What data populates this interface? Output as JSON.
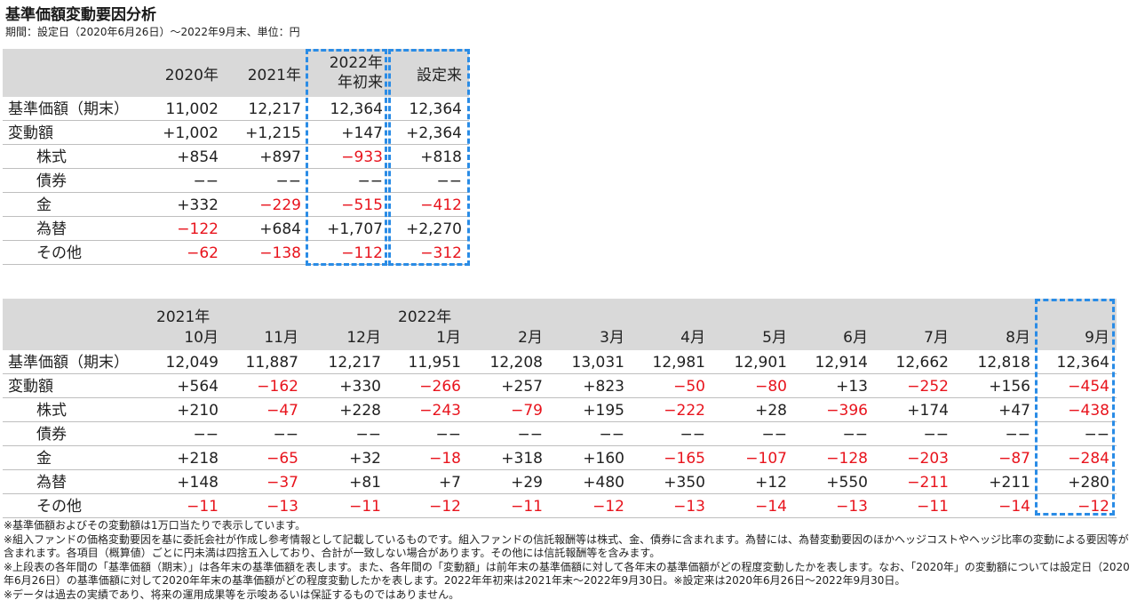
{
  "title": "基準価額変動要因分析",
  "subtitle": "期間：設定日（2020年6月26日）～2022年9月末、単位：円",
  "colors": {
    "negative": "#e8141d",
    "highlight": "#2a8ce6",
    "header_bg": "#d9d9d9"
  },
  "table1": {
    "headers": [
      "2020年",
      "2021年",
      "2022年",
      "年初来",
      "設定来"
    ],
    "rows": [
      {
        "label": "基準価額（期末）",
        "values": [
          "11,002",
          "12,217",
          "12,364",
          "12,364"
        ]
      },
      {
        "label": "変動額",
        "values": [
          "+1,002",
          "+1,215",
          "+147",
          "+2,364"
        ]
      },
      {
        "label": "株式",
        "values": [
          "+854",
          "+897",
          "−933",
          "+818"
        ]
      },
      {
        "label": "債券",
        "values": [
          "−−",
          "−−",
          "−−",
          "−−"
        ]
      },
      {
        "label": "金",
        "values": [
          "+332",
          "−229",
          "−515",
          "−412"
        ]
      },
      {
        "label": "為替",
        "values": [
          "−122",
          "+684",
          "+1,707",
          "+2,270"
        ]
      },
      {
        "label": "その他",
        "values": [
          "−62",
          "−138",
          "−112",
          "−312"
        ]
      }
    ]
  },
  "table2": {
    "year_labels": [
      "2021年",
      "2022年"
    ],
    "months": [
      "10月",
      "11月",
      "12月",
      "1月",
      "2月",
      "3月",
      "4月",
      "5月",
      "6月",
      "7月",
      "8月",
      "9月"
    ],
    "rows": [
      {
        "label": "基準価額（期末）",
        "values": [
          "12,049",
          "11,887",
          "12,217",
          "11,951",
          "12,208",
          "13,031",
          "12,981",
          "12,901",
          "12,914",
          "12,662",
          "12,818",
          "12,364"
        ]
      },
      {
        "label": "変動額",
        "values": [
          "+564",
          "−162",
          "+330",
          "−266",
          "+257",
          "+823",
          "−50",
          "−80",
          "+13",
          "−252",
          "+156",
          "−454"
        ]
      },
      {
        "label": "株式",
        "values": [
          "+210",
          "−47",
          "+228",
          "−243",
          "−79",
          "+195",
          "−222",
          "+28",
          "−396",
          "+174",
          "+47",
          "−438"
        ]
      },
      {
        "label": "債券",
        "values": [
          "−−",
          "−−",
          "−−",
          "−−",
          "−−",
          "−−",
          "−−",
          "−−",
          "−−",
          "−−",
          "−−",
          "−−"
        ]
      },
      {
        "label": "金",
        "values": [
          "+218",
          "−65",
          "+32",
          "−18",
          "+318",
          "+160",
          "−165",
          "−107",
          "−128",
          "−203",
          "−87",
          "−284"
        ]
      },
      {
        "label": "為替",
        "values": [
          "+148",
          "−37",
          "+81",
          "+7",
          "+29",
          "+480",
          "+350",
          "+12",
          "+550",
          "−211",
          "+211",
          "+280"
        ]
      },
      {
        "label": "その他",
        "values": [
          "−11",
          "−13",
          "−11",
          "−12",
          "−11",
          "−12",
          "−13",
          "−14",
          "−13",
          "−11",
          "−14",
          "−12"
        ]
      }
    ]
  },
  "notes": [
    "※基準価額およびその変動額は1万口当たりで表示しています。",
    "※組入ファンドの価格変動要因を基に委託会社が作成し参考情報として記載しているものです。組入ファンドの信託報酬等は株式、金、債券に含まれます。為替には、為替変動要因のほかヘッジコストやヘッジ比率の変動による要因等が含まれます。各項目（概算値）ごとに円未満は四捨五入しており、合計が一致しない場合があります。その他には信託報酬等を含みます。",
    "※上段表の各年間の「基準価額（期末）」は各年末の基準価額を表します。また、各年間の「変動額」は前年末の基準価額に対して各年末の基準価額がどの程度変動したかを表します。なお、「2020年」の変動額については設定日（2020年6月26日）の基準価額に対して2020年年末の基準価額がどの程度変動したかを表します。2022年年初来は2021年末～2022年9月30日。※設定来は2020年6月26日～2022年9月30日。",
    "※データは過去の実績であり、将来の運用成果等を示唆あるいは保証するものではありません。"
  ]
}
